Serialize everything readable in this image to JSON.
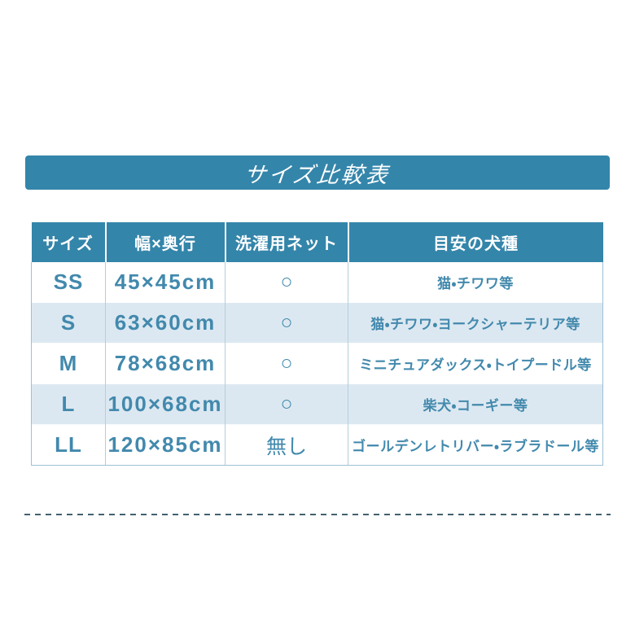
{
  "banner": {
    "title": "サイズ比較表",
    "bg_color": "#3485aa",
    "text_color": "#ffffff"
  },
  "chart_data": {
    "type": "table",
    "title": "サイズ比較表",
    "columns": [
      "サイズ",
      "幅×奥行",
      "洗濯用ネット",
      "目安の犬種"
    ],
    "rows": [
      {
        "size": "SS",
        "dimensions": "45×45cm",
        "net": "○",
        "breeds": "猫・チワワ等"
      },
      {
        "size": "S",
        "dimensions": "63×60cm",
        "net": "○",
        "breeds": "猫・チワワ・ヨークシャーテリア等"
      },
      {
        "size": "M",
        "dimensions": "78×68cm",
        "net": "○",
        "breeds": "ミニチュアダックス・トイプードル等"
      },
      {
        "size": "L",
        "dimensions": "100×68cm",
        "net": "○",
        "breeds": "柴犬・コーギー等"
      },
      {
        "size": "LL",
        "dimensions": "120×85cm",
        "net": "無し",
        "breeds": "ゴールデンレトリバー・ラブラドール等"
      }
    ],
    "layout": {
      "header_bg": "#3485aa",
      "header_text": "#ffffff",
      "alt_row_bg": "#dce8f1",
      "cell_text": "#4289ad",
      "grid": "vertical dividers, alternating row shading"
    }
  },
  "divider": {
    "style": "dashed",
    "color": "#42616f"
  }
}
